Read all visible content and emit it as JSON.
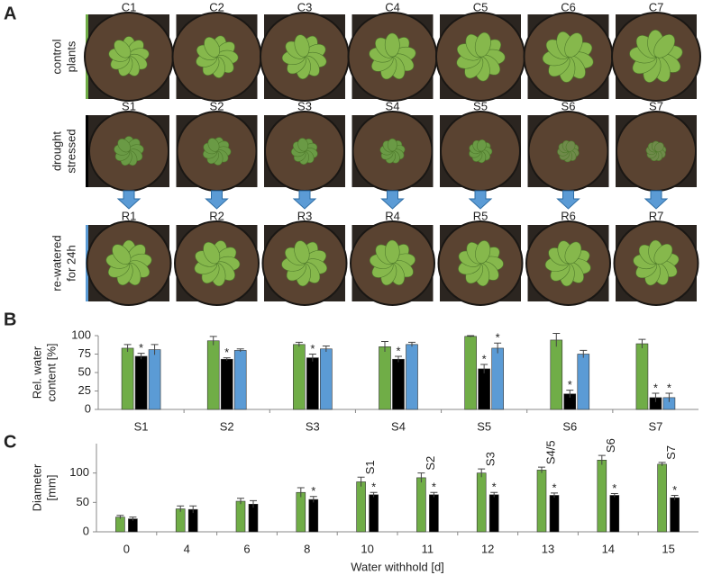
{
  "panel_a": {
    "letter": "A",
    "rows": [
      {
        "label": [
          "control",
          "plants"
        ],
        "color": "#70ad47",
        "items": [
          "C1",
          "C2",
          "C3",
          "C4",
          "C5",
          "C6",
          "C7"
        ]
      },
      {
        "label": [
          "drought",
          "stressed"
        ],
        "color": "#000000",
        "items": [
          "S1",
          "S2",
          "S3",
          "S4",
          "S5",
          "S6",
          "S7"
        ]
      },
      {
        "label": [
          "re-watered",
          "for 24h"
        ],
        "color": "#5b9bd5",
        "items": [
          "R1",
          "R2",
          "R3",
          "R4",
          "R5",
          "R6",
          "R7"
        ]
      }
    ]
  },
  "chart_data": [
    {
      "type": "bar",
      "letter": "B",
      "ylabel": [
        "Rel. water",
        "content [%]"
      ],
      "categories": [
        "S1",
        "S2",
        "S3",
        "S4",
        "S5",
        "S6",
        "S7"
      ],
      "ylim": [
        0,
        100
      ],
      "yticks": [
        0,
        25,
        50,
        75,
        100
      ],
      "series": [
        {
          "color": "#70ad47",
          "values": [
            83,
            93,
            88,
            85,
            99,
            94,
            89
          ],
          "errors": [
            5,
            6,
            3,
            7,
            1,
            9,
            6
          ],
          "significance": [
            null,
            null,
            null,
            null,
            null,
            null,
            null
          ]
        },
        {
          "color": "#000000",
          "values": [
            72,
            68,
            70,
            68,
            55,
            21,
            16
          ],
          "errors": [
            4,
            2,
            5,
            4,
            6,
            5,
            6
          ],
          "significance": [
            "*",
            "*",
            "*",
            "*",
            "*",
            "*",
            "*"
          ]
        },
        {
          "color": "#5b9bd5",
          "values": [
            81,
            80,
            82,
            88,
            83,
            75,
            16
          ],
          "errors": [
            7,
            2,
            4,
            3,
            7,
            5,
            6
          ],
          "significance": [
            null,
            null,
            null,
            null,
            "*",
            null,
            "*"
          ]
        }
      ]
    },
    {
      "type": "bar",
      "letter": "C",
      "ylabel": [
        "Diameter",
        "[mm]"
      ],
      "xlabel": "Water withhold [d]",
      "categories": [
        "0",
        "4",
        "6",
        "8",
        "10",
        "11",
        "12",
        "13",
        "14",
        "15"
      ],
      "ylim": [
        0,
        150
      ],
      "yticks": [
        0,
        50,
        100
      ],
      "series": [
        {
          "color": "#70ad47",
          "values": [
            25,
            39,
            52,
            67,
            85,
            92,
            100,
            105,
            122,
            115
          ],
          "errors": [
            3,
            5,
            5,
            8,
            8,
            8,
            7,
            5,
            8,
            3
          ],
          "significance": [
            null,
            null,
            null,
            null,
            null,
            null,
            null,
            null,
            null,
            null
          ],
          "stage_labels": [
            null,
            null,
            null,
            null,
            "S1",
            "S2",
            "S3",
            "S4/5",
            "S6",
            "S7"
          ]
        },
        {
          "color": "#000000",
          "values": [
            22,
            38,
            47,
            55,
            63,
            63,
            63,
            62,
            62,
            58
          ],
          "errors": [
            3,
            6,
            6,
            5,
            4,
            4,
            4,
            4,
            3,
            4
          ],
          "significance": [
            null,
            null,
            null,
            "*",
            "*",
            "*",
            "*",
            "*",
            "*",
            "*"
          ]
        }
      ]
    }
  ]
}
